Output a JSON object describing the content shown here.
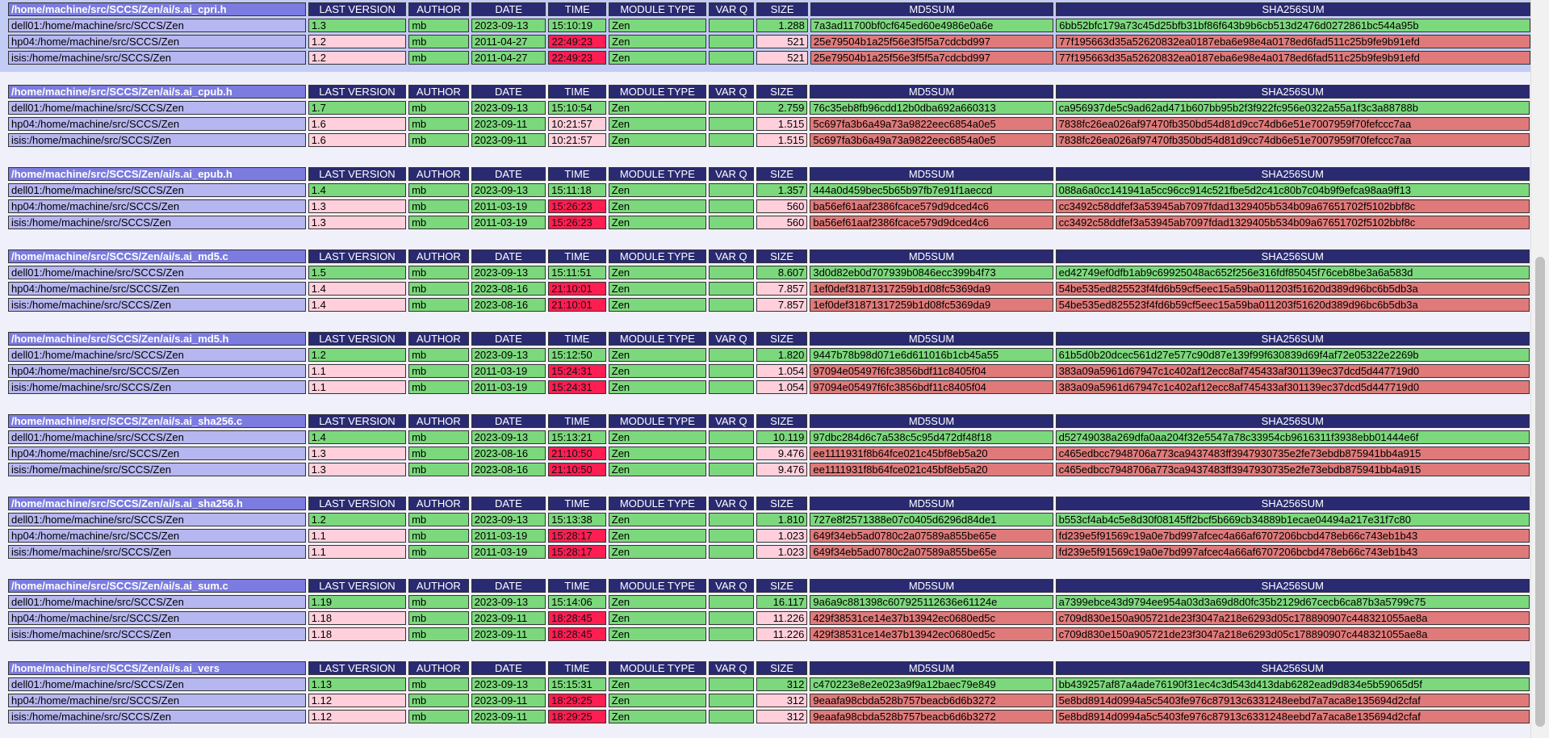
{
  "headers": {
    "last_version": "LAST VERSION",
    "author": "AUTHOR",
    "date": "DATE",
    "time": "TIME",
    "module_type": "MODULE TYPE",
    "var_q": "VAR Q",
    "size": "SIZE",
    "md5": "MD5SUM",
    "sha256": "SHA256SUM"
  },
  "status_colors": {
    "green": "#7cd87c",
    "pink": "#ffd0dc",
    "red": "#e07a7a",
    "time_red": "#ff1e52"
  },
  "groups": [
    {
      "file": "/home/machine/src/SCCS/Zen/ai/s.ai_cpri.h",
      "rows": [
        {
          "host": "dell01:/home/machine/src/SCCS/Zen",
          "version": "1.3",
          "author": "mb",
          "date": "2023-09-13",
          "time": "15:10:19",
          "module_type": "Zen",
          "var_q": "",
          "size": "1.288",
          "md5": "7a3ad11700bf0cf645ed60e4986e0a6e",
          "sha256": "6bb52bfc179a73c45d25bfb31bf86f643b9b6cb513d2476d0272861bc544a95b",
          "status": "green"
        },
        {
          "host": "hp04:/home/machine/src/SCCS/Zen",
          "version": "1.2",
          "author": "mb",
          "date": "2011-04-27",
          "time": "22:49:23",
          "module_type": "Zen",
          "var_q": "",
          "size": "521",
          "md5": "25e79504b1a25f56e3f5f5a7cdcbd997",
          "sha256": "77f195663d35a52620832ea0187eba6e98e4a0178ed6fad511c25b9fe9b91efd",
          "status": "red"
        },
        {
          "host": "isis:/home/machine/src/SCCS/Zen",
          "version": "1.2",
          "author": "mb",
          "date": "2011-04-27",
          "time": "22:49:23",
          "module_type": "Zen",
          "var_q": "",
          "size": "521",
          "md5": "25e79504b1a25f56e3f5f5a7cdcbd997",
          "sha256": "77f195663d35a52620832ea0187eba6e98e4a0178ed6fad511c25b9fe9b91efd",
          "status": "red"
        }
      ]
    },
    {
      "file": "/home/machine/src/SCCS/Zen/ai/s.ai_cpub.h",
      "rows": [
        {
          "host": "dell01:/home/machine/src/SCCS/Zen",
          "version": "1.7",
          "author": "mb",
          "date": "2023-09-13",
          "time": "15:10:54",
          "module_type": "Zen",
          "var_q": "",
          "size": "2.759",
          "md5": "76c35eb8fb96cdd12b0dba692a660313",
          "sha256": "ca956937de5c9ad62ad471b607bb95b2f3f922fc956e0322a55a1f3c3a88788b",
          "status": "green"
        },
        {
          "host": "hp04:/home/machine/src/SCCS/Zen",
          "version": "1.6",
          "author": "mb",
          "date": "2023-09-11",
          "time": "10:21:57",
          "module_type": "Zen",
          "var_q": "",
          "size": "1.515",
          "md5": "5c697fa3b6a49a73a9822eec6854a0e5",
          "sha256": "7838fc26ea026af97470fb350bd54d81d9cc74db6e51e7007959f70fefccc7aa",
          "status": "red_plain"
        },
        {
          "host": "isis:/home/machine/src/SCCS/Zen",
          "version": "1.6",
          "author": "mb",
          "date": "2023-09-11",
          "time": "10:21:57",
          "module_type": "Zen",
          "var_q": "",
          "size": "1.515",
          "md5": "5c697fa3b6a49a73a9822eec6854a0e5",
          "sha256": "7838fc26ea026af97470fb350bd54d81d9cc74db6e51e7007959f70fefccc7aa",
          "status": "red_plain"
        }
      ]
    },
    {
      "file": "/home/machine/src/SCCS/Zen/ai/s.ai_epub.h",
      "rows": [
        {
          "host": "dell01:/home/machine/src/SCCS/Zen",
          "version": "1.4",
          "author": "mb",
          "date": "2023-09-13",
          "time": "15:11:18",
          "module_type": "Zen",
          "var_q": "",
          "size": "1.357",
          "md5": "444a0d459bec5b65b97fb7e91f1aeccd",
          "sha256": "088a6a0cc141941a5cc96cc914c521fbe5d2c41c80b7c04b9f9efca98aa9ff13",
          "status": "green"
        },
        {
          "host": "hp04:/home/machine/src/SCCS/Zen",
          "version": "1.3",
          "author": "mb",
          "date": "2011-03-19",
          "time": "15:26:23",
          "module_type": "Zen",
          "var_q": "",
          "size": "560",
          "md5": "ba56ef61aaf2386fcace579d9dced4c6",
          "sha256": "cc3492c58ddfef3a53945ab7097fdad1329405b534b09a67651702f5102bbf8c",
          "status": "red"
        },
        {
          "host": "isis:/home/machine/src/SCCS/Zen",
          "version": "1.3",
          "author": "mb",
          "date": "2011-03-19",
          "time": "15:26:23",
          "module_type": "Zen",
          "var_q": "",
          "size": "560",
          "md5": "ba56ef61aaf2386fcace579d9dced4c6",
          "sha256": "cc3492c58ddfef3a53945ab7097fdad1329405b534b09a67651702f5102bbf8c",
          "status": "red"
        }
      ]
    },
    {
      "file": "/home/machine/src/SCCS/Zen/ai/s.ai_md5.c",
      "rows": [
        {
          "host": "dell01:/home/machine/src/SCCS/Zen",
          "version": "1.5",
          "author": "mb",
          "date": "2023-09-13",
          "time": "15:11:51",
          "module_type": "Zen",
          "var_q": "",
          "size": "8.607",
          "md5": "3d0d82eb0d707939b0846ecc399b4f73",
          "sha256": "ed42749ef0dfb1ab9c69925048ac652f256e316fdf85045f76ceb8be3a6a583d",
          "status": "green"
        },
        {
          "host": "hp04:/home/machine/src/SCCS/Zen",
          "version": "1.4",
          "author": "mb",
          "date": "2023-08-16",
          "time": "21:10:01",
          "module_type": "Zen",
          "var_q": "",
          "size": "7.857",
          "md5": "1ef0def31871317259b1d08fc5369da9",
          "sha256": "54be535ed825523f4fd6b59cf5eec15a59ba011203f51620d389d96bc6b5db3a",
          "status": "red"
        },
        {
          "host": "isis:/home/machine/src/SCCS/Zen",
          "version": "1.4",
          "author": "mb",
          "date": "2023-08-16",
          "time": "21:10:01",
          "module_type": "Zen",
          "var_q": "",
          "size": "7.857",
          "md5": "1ef0def31871317259b1d08fc5369da9",
          "sha256": "54be535ed825523f4fd6b59cf5eec15a59ba011203f51620d389d96bc6b5db3a",
          "status": "red"
        }
      ]
    },
    {
      "file": "/home/machine/src/SCCS/Zen/ai/s.ai_md5.h",
      "rows": [
        {
          "host": "dell01:/home/machine/src/SCCS/Zen",
          "version": "1.2",
          "author": "mb",
          "date": "2023-09-13",
          "time": "15:12:50",
          "module_type": "Zen",
          "var_q": "",
          "size": "1.820",
          "md5": "9447b78b98d071e6d611016b1cb45a55",
          "sha256": "61b5d0b20dcec561d27e577c90d87e139f99f630839d69f4af72e05322e2269b",
          "status": "green"
        },
        {
          "host": "hp04:/home/machine/src/SCCS/Zen",
          "version": "1.1",
          "author": "mb",
          "date": "2011-03-19",
          "time": "15:24:31",
          "module_type": "Zen",
          "var_q": "",
          "size": "1.054",
          "md5": "97094e05497f6fc3856bdf11c8405f04",
          "sha256": "383a09a5961d67947c1c402af12ecc8af745433af301139ec37dcd5d447719d0",
          "status": "red"
        },
        {
          "host": "isis:/home/machine/src/SCCS/Zen",
          "version": "1.1",
          "author": "mb",
          "date": "2011-03-19",
          "time": "15:24:31",
          "module_type": "Zen",
          "var_q": "",
          "size": "1.054",
          "md5": "97094e05497f6fc3856bdf11c8405f04",
          "sha256": "383a09a5961d67947c1c402af12ecc8af745433af301139ec37dcd5d447719d0",
          "status": "red"
        }
      ]
    },
    {
      "file": "/home/machine/src/SCCS/Zen/ai/s.ai_sha256.c",
      "rows": [
        {
          "host": "dell01:/home/machine/src/SCCS/Zen",
          "version": "1.4",
          "author": "mb",
          "date": "2023-09-13",
          "time": "15:13:21",
          "module_type": "Zen",
          "var_q": "",
          "size": "10.119",
          "md5": "97dbc284d6c7a538c5c95d472df48f18",
          "sha256": "d52749038a269dfa0aa204f32e5547a78c33954cb9616311f3938ebb01444e6f",
          "status": "green"
        },
        {
          "host": "hp04:/home/machine/src/SCCS/Zen",
          "version": "1.3",
          "author": "mb",
          "date": "2023-08-16",
          "time": "21:10:50",
          "module_type": "Zen",
          "var_q": "",
          "size": "9.476",
          "md5": "ee1111931f8b64fce021c45bf8eb5a20",
          "sha256": "c465edbcc7948706a773ca9437483ff3947930735e2fe73ebdb875941bb4a915",
          "status": "red"
        },
        {
          "host": "isis:/home/machine/src/SCCS/Zen",
          "version": "1.3",
          "author": "mb",
          "date": "2023-08-16",
          "time": "21:10:50",
          "module_type": "Zen",
          "var_q": "",
          "size": "9.476",
          "md5": "ee1111931f8b64fce021c45bf8eb5a20",
          "sha256": "c465edbcc7948706a773ca9437483ff3947930735e2fe73ebdb875941bb4a915",
          "status": "red"
        }
      ]
    },
    {
      "file": "/home/machine/src/SCCS/Zen/ai/s.ai_sha256.h",
      "rows": [
        {
          "host": "dell01:/home/machine/src/SCCS/Zen",
          "version": "1.2",
          "author": "mb",
          "date": "2023-09-13",
          "time": "15:13:38",
          "module_type": "Zen",
          "var_q": "",
          "size": "1.810",
          "md5": "727e8f2571388e07c0405d6296d84de1",
          "sha256": "b553cf4ab4c5e8d30f08145ff2bcf5b669cb34889b1ecae04494a217e31f7c80",
          "status": "green"
        },
        {
          "host": "hp04:/home/machine/src/SCCS/Zen",
          "version": "1.1",
          "author": "mb",
          "date": "2011-03-19",
          "time": "15:28:17",
          "module_type": "Zen",
          "var_q": "",
          "size": "1.023",
          "md5": "649f34eb5ad0780c2a07589a855be65e",
          "sha256": "fd239e5f91569c19a0e7bd997afcec4a66af6707206bcbd478eb66c743eb1b43",
          "status": "red"
        },
        {
          "host": "isis:/home/machine/src/SCCS/Zen",
          "version": "1.1",
          "author": "mb",
          "date": "2011-03-19",
          "time": "15:28:17",
          "module_type": "Zen",
          "var_q": "",
          "size": "1.023",
          "md5": "649f34eb5ad0780c2a07589a855be65e",
          "sha256": "fd239e5f91569c19a0e7bd997afcec4a66af6707206bcbd478eb66c743eb1b43",
          "status": "red"
        }
      ]
    },
    {
      "file": "/home/machine/src/SCCS/Zen/ai/s.ai_sum.c",
      "rows": [
        {
          "host": "dell01:/home/machine/src/SCCS/Zen",
          "version": "1.19",
          "author": "mb",
          "date": "2023-09-13",
          "time": "15:14:06",
          "module_type": "Zen",
          "var_q": "",
          "size": "16.117",
          "md5": "9a6a9c881398c607925112636e61124e",
          "sha256": "a7399ebce43d9794ee954a03d3a69d8d0fc35b2129d67cecb6ca87b3a5799c75",
          "status": "green"
        },
        {
          "host": "hp04:/home/machine/src/SCCS/Zen",
          "version": "1.18",
          "author": "mb",
          "date": "2023-09-11",
          "time": "18:28:45",
          "module_type": "Zen",
          "var_q": "",
          "size": "11.226",
          "md5": "429f38531ce14e37b13942ec0680ed5c",
          "sha256": "c709d830e150a905721de23f3047a218e6293d05c178890907c448321055ae8a",
          "status": "red"
        },
        {
          "host": "isis:/home/machine/src/SCCS/Zen",
          "version": "1.18",
          "author": "mb",
          "date": "2023-09-11",
          "time": "18:28:45",
          "module_type": "Zen",
          "var_q": "",
          "size": "11.226",
          "md5": "429f38531ce14e37b13942ec0680ed5c",
          "sha256": "c709d830e150a905721de23f3047a218e6293d05c178890907c448321055ae8a",
          "status": "red"
        }
      ]
    },
    {
      "file": "/home/machine/src/SCCS/Zen/ai/s.ai_vers",
      "rows": [
        {
          "host": "dell01:/home/machine/src/SCCS/Zen",
          "version": "1.13",
          "author": "mb",
          "date": "2023-09-13",
          "time": "15:15:31",
          "module_type": "Zen",
          "var_q": "",
          "size": "312",
          "md5": "c470223e8e2e023a9f9a12baec79e849",
          "sha256": "bb439257af87a4ade76190f31ec4c3d543d413dab6282ead9d834e5b59065d5f",
          "status": "green"
        },
        {
          "host": "hp04:/home/machine/src/SCCS/Zen",
          "version": "1.12",
          "author": "mb",
          "date": "2023-09-11",
          "time": "18:29:25",
          "module_type": "Zen",
          "var_q": "",
          "size": "312",
          "md5": "9eaafa98cbda528b757beacb6d6b3272",
          "sha256": "5e8bd8914d0994a5c5403fe976c87913c6331248eebd7a7aca8e135694d2cfaf",
          "status": "red"
        },
        {
          "host": "isis:/home/machine/src/SCCS/Zen",
          "version": "1.12",
          "author": "mb",
          "date": "2023-09-11",
          "time": "18:29:25",
          "module_type": "Zen",
          "var_q": "",
          "size": "312",
          "md5": "9eaafa98cbda528b757beacb6d6b3272",
          "sha256": "5e8bd8914d0994a5c5403fe976c87913c6331248eebd7a7aca8e135694d2cfaf",
          "status": "red"
        }
      ]
    }
  ]
}
